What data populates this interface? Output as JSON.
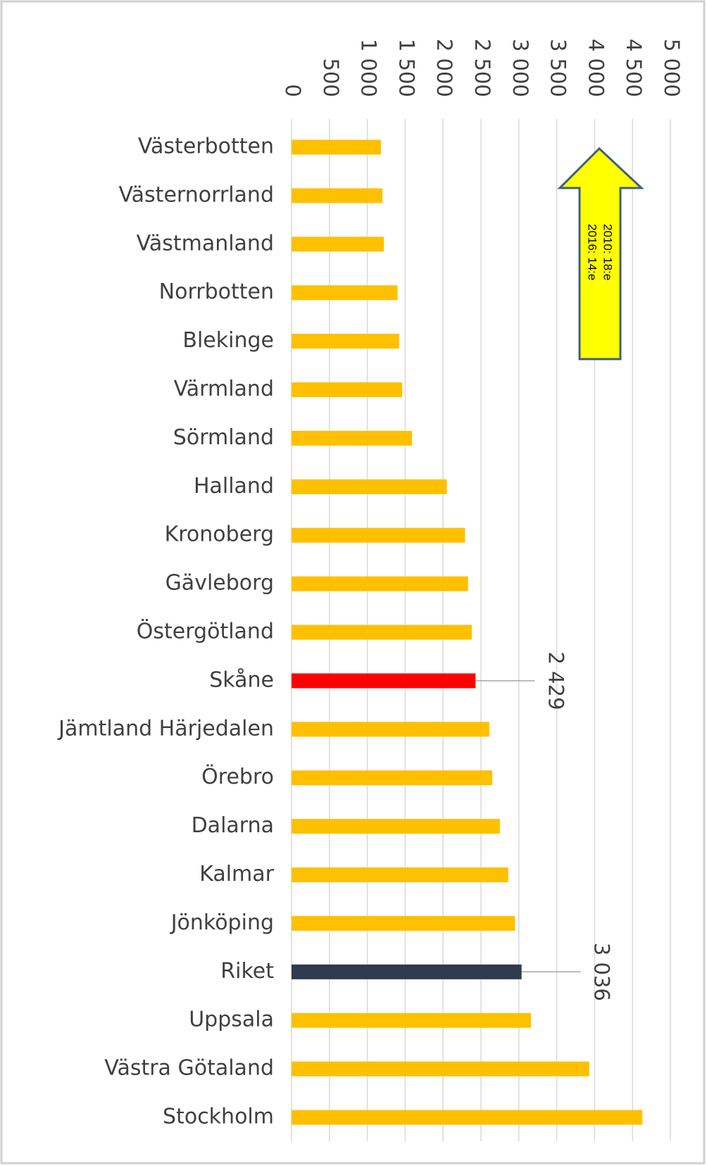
{
  "chart_data": {
    "type": "bar",
    "orientation": "horizontal",
    "categories": [
      "Västerbotten",
      "Västernorrland",
      "Västmanland",
      "Norrbotten",
      "Blekinge",
      "Värmland",
      "Sörmland",
      "Halland",
      "Kronoberg",
      "Gävleborg",
      "Östergötland",
      "Skåne",
      "Jämtland Härjedalen",
      "Örebro",
      "Dalarna",
      "Kalmar",
      "Jönköping",
      "Riket",
      "Uppsala",
      "Västra Götaland",
      "Stockholm"
    ],
    "values": [
      1180,
      1200,
      1220,
      1400,
      1420,
      1460,
      1590,
      2050,
      2290,
      2330,
      2380,
      2429,
      2610,
      2650,
      2750,
      2860,
      2950,
      3036,
      3160,
      3930,
      4630
    ],
    "value_labels": [
      null,
      null,
      null,
      null,
      null,
      null,
      null,
      null,
      null,
      null,
      null,
      "2 429",
      null,
      null,
      null,
      null,
      null,
      "3 036",
      null,
      null,
      null
    ],
    "colors": [
      "#ffc000",
      "#ffc000",
      "#ffc000",
      "#ffc000",
      "#ffc000",
      "#ffc000",
      "#ffc000",
      "#ffc000",
      "#ffc000",
      "#ffc000",
      "#ffc000",
      "#ff0000",
      "#ffc000",
      "#ffc000",
      "#ffc000",
      "#ffc000",
      "#ffc000",
      "#2e3a4e",
      "#ffc000",
      "#ffc000",
      "#ffc000"
    ],
    "xlim": [
      0,
      5000
    ],
    "xticks": [
      0,
      500,
      {
        "value": 1000,
        "label": "1 000"
      },
      {
        "value": 1500,
        "label": "1 500"
      },
      {
        "value": 2000,
        "label": "2 000"
      },
      {
        "value": 2500,
        "label": "2 500"
      },
      {
        "value": 3000,
        "label": "3 000"
      },
      {
        "value": 3500,
        "label": "3 500"
      },
      {
        "value": 4000,
        "label": "4 000"
      },
      {
        "value": 4500,
        "label": "4 500"
      },
      {
        "value": 5000,
        "label": "5 000"
      }
    ],
    "grid": true,
    "annotation": [
      "2010: 18:e",
      "2016: 14:e"
    ]
  }
}
